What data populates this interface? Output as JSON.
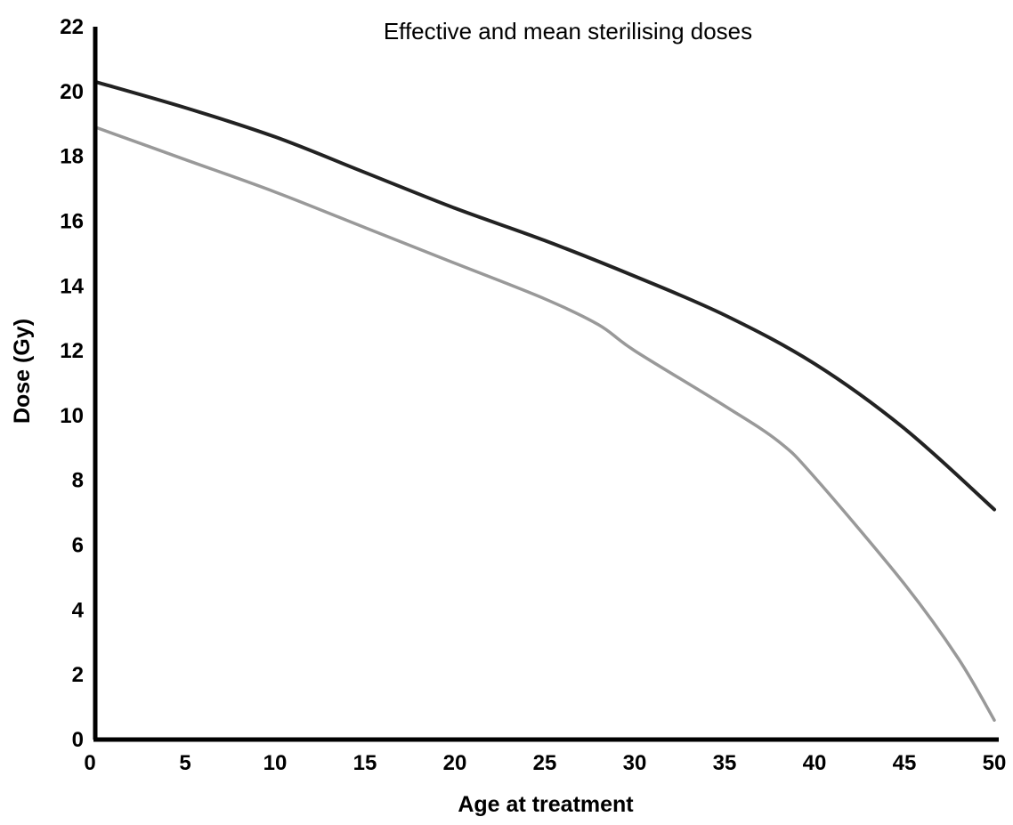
{
  "chart_data": {
    "type": "line",
    "title": "Effective and mean sterilising doses",
    "xlabel": "Age at treatment",
    "ylabel": "Dose (Gy)",
    "xlim": [
      0,
      50
    ],
    "ylim": [
      0,
      22
    ],
    "xticks": [
      0,
      5,
      10,
      15,
      20,
      25,
      30,
      35,
      40,
      45,
      50
    ],
    "yticks": [
      0,
      2,
      4,
      6,
      8,
      10,
      12,
      14,
      16,
      18,
      20,
      22
    ],
    "grid": false,
    "legend": "none",
    "series": [
      {
        "color": "#222222",
        "x": [
          0,
          5,
          10,
          15,
          20,
          25,
          30,
          35,
          40,
          45,
          50
        ],
        "y": [
          20.3,
          19.5,
          18.6,
          17.5,
          16.4,
          15.4,
          14.3,
          13.1,
          11.6,
          9.6,
          7.1
        ]
      },
      {
        "color": "#999999",
        "x": [
          0,
          5,
          10,
          15,
          20,
          25,
          28,
          30,
          35,
          38,
          40,
          45,
          48,
          50
        ],
        "y": [
          18.9,
          17.9,
          16.9,
          15.8,
          14.7,
          13.6,
          12.8,
          12.0,
          10.3,
          9.2,
          8.1,
          4.8,
          2.5,
          0.6
        ]
      }
    ]
  }
}
